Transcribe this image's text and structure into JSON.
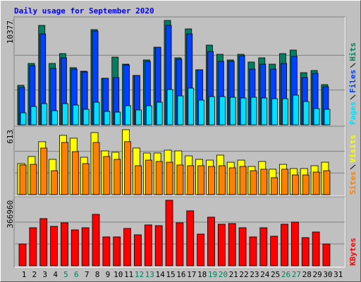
{
  "chart_data": [
    {
      "type": "bar",
      "title": "Daily usage for September 2020",
      "ylim": [
        0,
        10377
      ],
      "yticks": [
        10377
      ],
      "series": [
        {
          "name": "Hits",
          "color": "#008060",
          "values": [
            3926,
            6100,
            9886,
            6100,
            7081,
            5679,
            5328,
            9465,
            4627,
            6731,
            6029,
            4908,
            6450,
            7712,
            10377,
            6660,
            9535,
            5469,
            7922,
            7011,
            6450,
            7011,
            6240,
            6660,
            6029,
            7081,
            7432,
            5188,
            5398,
            3996,
            null
          ]
        },
        {
          "name": "Files",
          "color": "#0040ff",
          "values": [
            3716,
            5889,
            9044,
            5609,
            6660,
            5539,
            5258,
            9325,
            4627,
            4697,
            5959,
            4908,
            6310,
            7712,
            9886,
            6520,
            9044,
            5469,
            7291,
            6310,
            6310,
            6871,
            5539,
            6029,
            5539,
            6100,
            6801,
            4697,
            5118,
            3786,
            null
          ]
        },
        {
          "name": "Pages",
          "color": "#00e0ff",
          "values": [
            1192,
            1823,
            2103,
            1402,
            2103,
            1963,
            1542,
            2244,
            1332,
            1262,
            1893,
            1472,
            1893,
            2244,
            3506,
            2875,
            3646,
            2454,
            2804,
            2804,
            2734,
            2664,
            2734,
            2664,
            2594,
            2594,
            2945,
            2314,
            1613,
            1542,
            null
          ]
        }
      ]
    },
    {
      "type": "bar",
      "ylim": [
        0,
        613
      ],
      "yticks": [
        613
      ],
      "series": [
        {
          "name": "Visits",
          "color": "#ffff00",
          "values": [
            293,
            360,
            500,
            333,
            560,
            533,
            353,
            586,
            413,
            400,
            613,
            440,
            393,
            393,
            420,
            413,
            366,
            333,
            326,
            373,
            306,
            326,
            266,
            313,
            240,
            286,
            246,
            246,
            273,
            306,
            null
          ]
        },
        {
          "name": "Sites",
          "color": "#ff8000",
          "values": [
            280,
            286,
            440,
            226,
            493,
            406,
            293,
            493,
            360,
            333,
            500,
            273,
            326,
            313,
            306,
            280,
            273,
            273,
            266,
            273,
            253,
            266,
            226,
            240,
            160,
            240,
            186,
            186,
            213,
            226,
            null
          ]
        }
      ]
    },
    {
      "type": "bar",
      "ylim": [
        0,
        366960
      ],
      "yticks": [
        366960
      ],
      "categories": [
        "1",
        "2",
        "3",
        "4",
        "5",
        "6",
        "7",
        "8",
        "9",
        "10",
        "11",
        "12",
        "13",
        "14",
        "15",
        "16",
        "17",
        "18",
        "19",
        "20",
        "21",
        "22",
        "23",
        "24",
        "25",
        "26",
        "27",
        "28",
        "29",
        "30",
        "31"
      ],
      "label_colors": [
        "#000000",
        "#000000",
        "#000000",
        "#000000",
        "#00805c",
        "#00805c",
        "#000000",
        "#000000",
        "#000000",
        "#000000",
        "#000000",
        "#00805c",
        "#00805c",
        "#000000",
        "#000000",
        "#000000",
        "#000000",
        "#000000",
        "#00805c",
        "#00805c",
        "#000000",
        "#000000",
        "#000000",
        "#000000",
        "#000000",
        "#00805c",
        "#00805c",
        "#000000",
        "#000000",
        "#000000",
        "#000000"
      ],
      "series": [
        {
          "name": "KBytes",
          "color": "#ff0000",
          "values": [
            122300,
            213100,
            264400,
            221000,
            240700,
            201200,
            213100,
            288100,
            161800,
            161800,
            209100,
            173600,
            228900,
            224900,
            366960,
            240700,
            307800,
            177600,
            272300,
            232800,
            236800,
            213100,
            161800,
            213100,
            165700,
            232800,
            244700,
            157800,
            189400,
            122300,
            null
          ]
        }
      ]
    }
  ]
}
